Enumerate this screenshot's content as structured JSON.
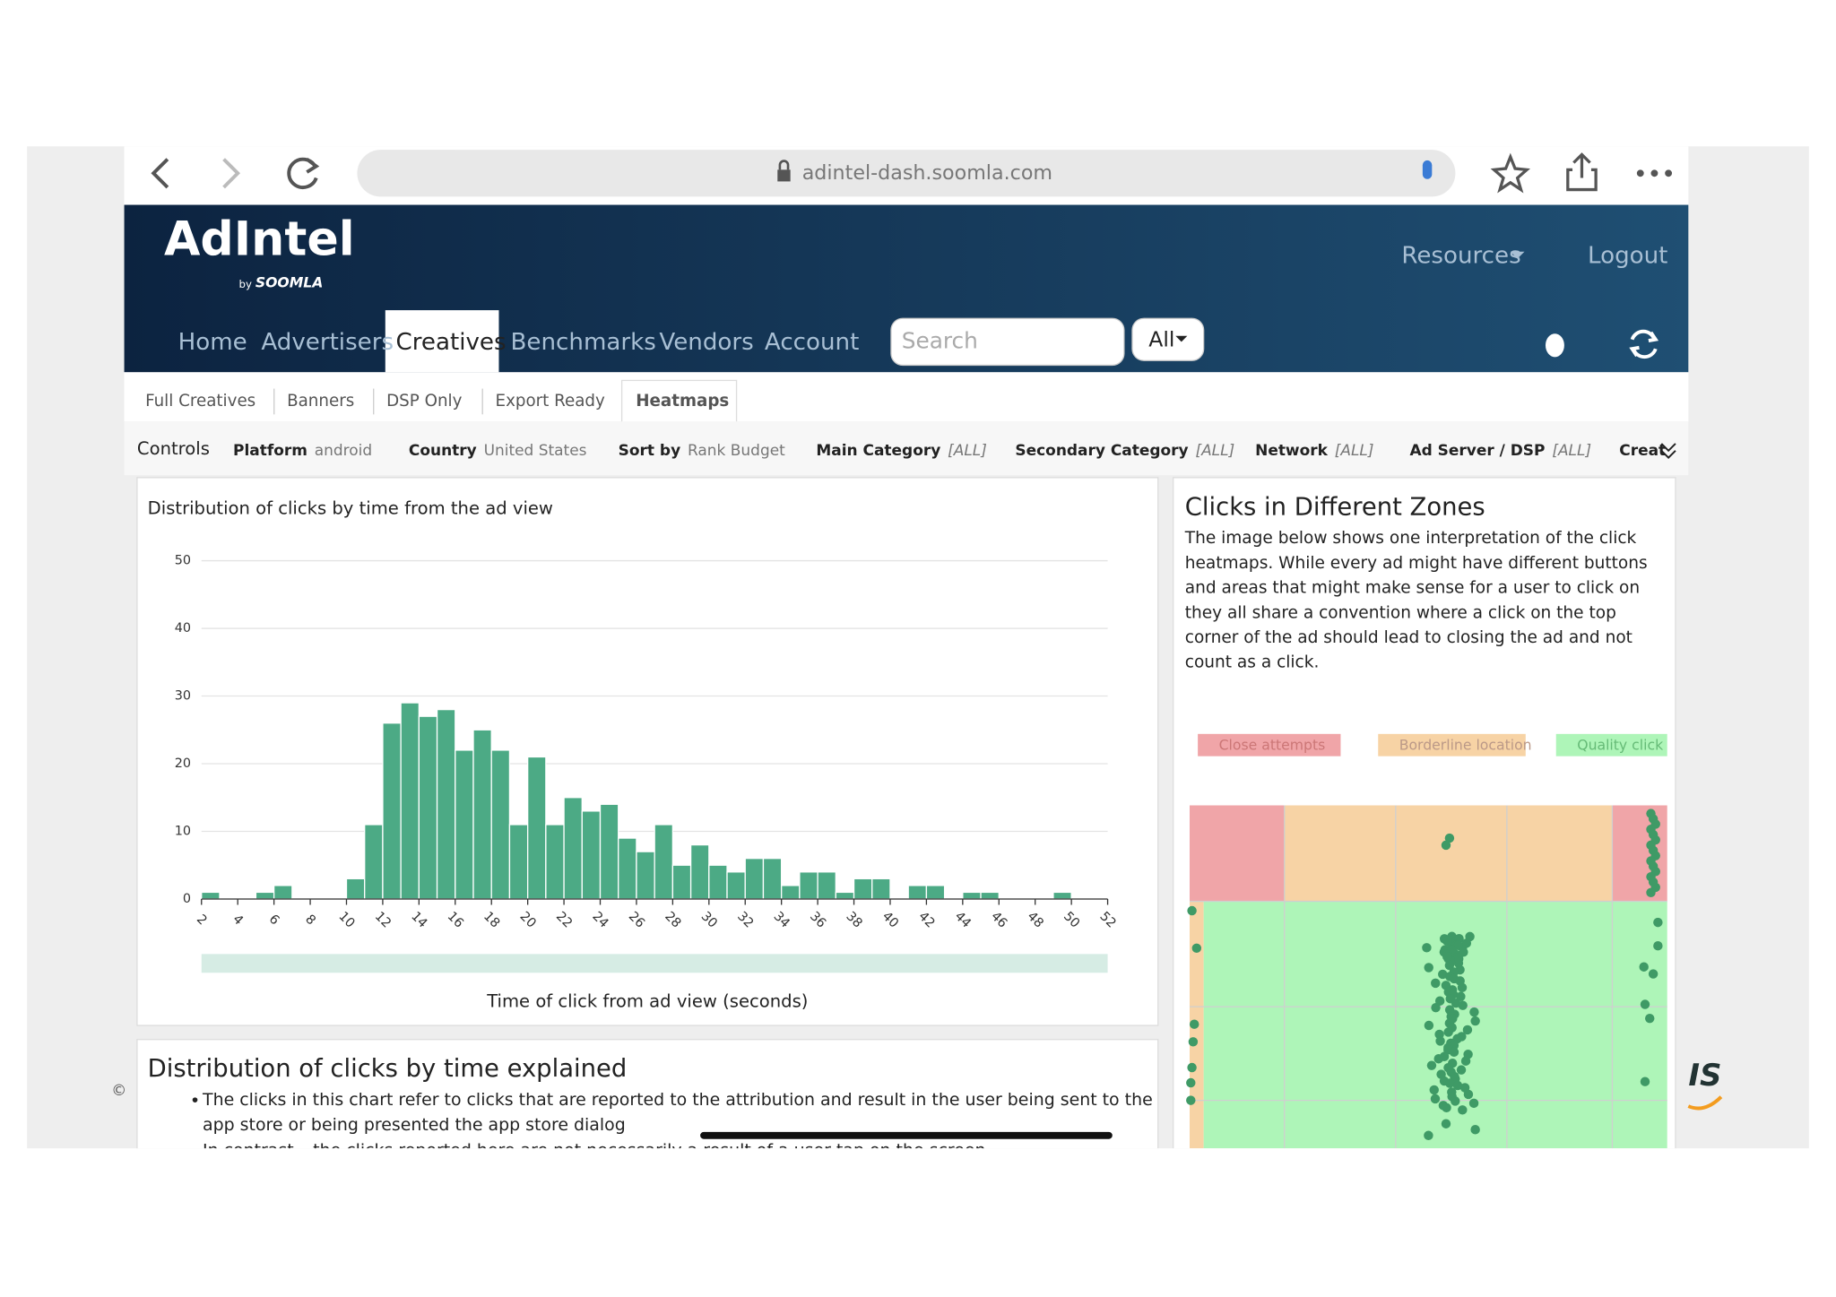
{
  "browser": {
    "url": "adintel-dash.soomla.com"
  },
  "header": {
    "logo": "AdIntel",
    "logo_by": "by",
    "logo_brand": "SOOMLA",
    "menu": [
      "Resources",
      "Logout"
    ]
  },
  "nav": {
    "items": [
      "Home",
      "Advertisers",
      "Creatives",
      "Benchmarks",
      "Vendors",
      "Account"
    ],
    "active": 2,
    "search_placeholder": "Search",
    "filter": "All"
  },
  "subtabs": {
    "items": [
      "Full Creatives",
      "Banners",
      "DSP Only",
      "Export Ready",
      "Heatmaps"
    ],
    "active": 4
  },
  "controls": {
    "title": "Controls",
    "filters": [
      {
        "label": "Platform",
        "value": "android"
      },
      {
        "label": "Country",
        "value": "United States"
      },
      {
        "label": "Sort by",
        "value": "Rank Budget"
      },
      {
        "label": "Main Category",
        "value": "[ALL]"
      },
      {
        "label": "Secondary Category",
        "value": "[ALL]"
      },
      {
        "label": "Network",
        "value": "[ALL]"
      },
      {
        "label": "Ad Server / DSP",
        "value": "[ALL]"
      },
      {
        "label": "Creat"
      }
    ]
  },
  "chart_data": {
    "type": "histogram",
    "title": "Distribution of clicks by time from the ad view",
    "x_label": "Time of click from ad view (seconds)",
    "bins": [
      2,
      3,
      4,
      5,
      6,
      7,
      8,
      9,
      10,
      11,
      12,
      13,
      14,
      15,
      16,
      17,
      18,
      19,
      20,
      21,
      22,
      23,
      24,
      25,
      26,
      27,
      28,
      29,
      30,
      31,
      32,
      33,
      34,
      35,
      36,
      37,
      38,
      39,
      40,
      41,
      42,
      43,
      44,
      45,
      46,
      47,
      48,
      49,
      50,
      51,
      52
    ],
    "values": [
      1,
      0,
      0,
      1,
      2,
      0,
      0,
      0,
      3,
      11,
      26,
      29,
      27,
      28,
      22,
      25,
      22,
      11,
      21,
      11,
      15,
      13,
      14,
      9,
      7,
      11,
      5,
      8,
      5,
      4,
      6,
      6,
      2,
      4,
      4,
      1,
      3,
      3,
      0,
      2,
      2,
      0,
      1,
      1,
      0,
      0,
      0,
      1,
      0,
      0
    ],
    "color": "#4caa85",
    "xlim": [
      2,
      52
    ],
    "ylim": [
      0,
      50
    ],
    "xticks": [
      2,
      4,
      6,
      8,
      10,
      12,
      14,
      16,
      18,
      20,
      22,
      24,
      26,
      28,
      30,
      32,
      34,
      36,
      38,
      40,
      42,
      44,
      46,
      48,
      50,
      52
    ],
    "yticks": [
      0,
      10,
      20,
      30,
      40,
      50
    ],
    "grid": true
  },
  "zones": {
    "title": "Clicks in Different Zones",
    "lines": [
      "The image below shows one interpretation of the click",
      "heatmaps. While every ad might have different buttons",
      "and areas that might make sense for a user to click on",
      "they all share a convention where a click on the top",
      "corner of the ad should lead to closing the ad and not",
      "count as a click."
    ],
    "legend": [
      "Close attempts",
      "Borderline location",
      "Quality click loc"
    ]
  },
  "explained": {
    "title": "Distribution of clicks by time explained",
    "lines": [
      "The clicks in this chart refer to clicks that are reported to the attribution and result in the user being sent to the",
      "app store or being presented the app store dialog",
      "In contrast – the clicks reported here are not necessarily a result of a user tap on the screen"
    ]
  },
  "footer": {
    "copyright": "©",
    "logo_fragment": "IS"
  }
}
